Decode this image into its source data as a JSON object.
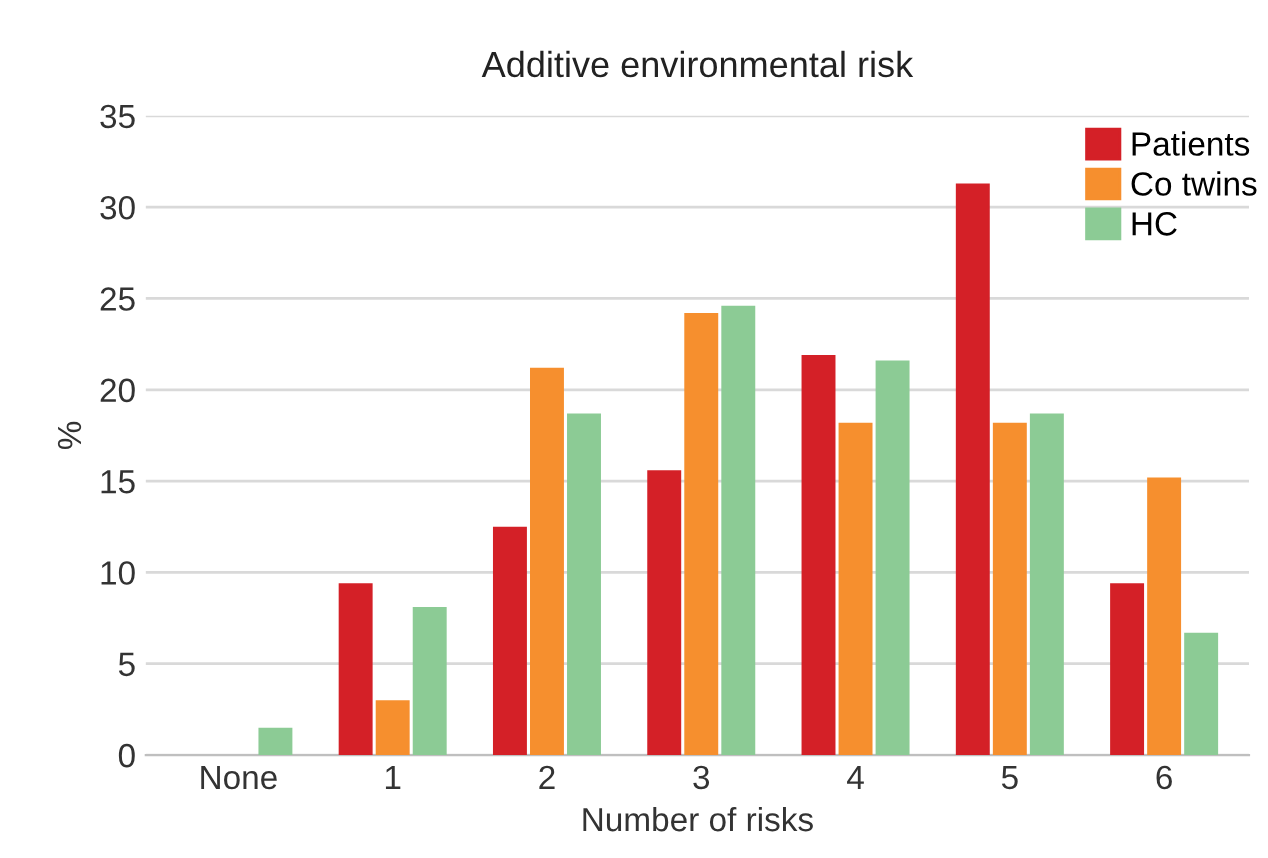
{
  "chart_data": {
    "type": "bar",
    "title": "Additive environmental risk",
    "xlabel": "Number of risks",
    "ylabel": "%",
    "categories": [
      "None",
      "1",
      "2",
      "3",
      "4",
      "5",
      "6"
    ],
    "series": [
      {
        "name": "Patients",
        "color": "#d42027",
        "values": [
          0,
          9.4,
          12.5,
          15.6,
          21.9,
          31.3,
          9.4
        ]
      },
      {
        "name": "Co twins",
        "color": "#f68f2e",
        "values": [
          0,
          3.0,
          21.2,
          24.2,
          18.2,
          18.2,
          15.2
        ]
      },
      {
        "name": "HC",
        "color": "#8ccb95",
        "values": [
          1.5,
          8.1,
          18.7,
          24.6,
          21.6,
          18.7,
          6.7
        ]
      }
    ],
    "ylim": [
      0,
      35
    ],
    "yticks": [
      0,
      5,
      10,
      15,
      20,
      25,
      30,
      35
    ],
    "grid": "y",
    "legend": "top right"
  }
}
